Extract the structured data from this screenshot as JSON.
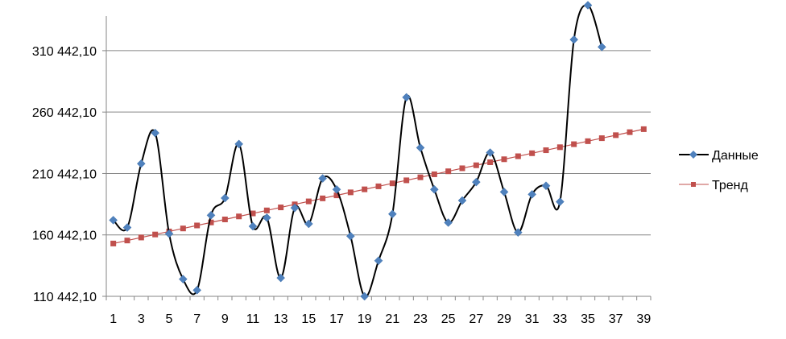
{
  "chart_data": {
    "type": "line",
    "title": "",
    "xlabel": "",
    "ylabel": "",
    "x_ticks": [
      "1",
      "3",
      "5",
      "7",
      "9",
      "11",
      "13",
      "15",
      "17",
      "19",
      "21",
      "23",
      "25",
      "27",
      "29",
      "31",
      "33",
      "35",
      "37",
      "39"
    ],
    "y_ticks": [
      "110 442,10",
      "160 442,10",
      "210 442,10",
      "260 442,10",
      "310 442,10"
    ],
    "xlim": [
      1,
      39
    ],
    "ylim": [
      110442.1,
      346442.1
    ],
    "grid": "horizontal",
    "legend_position": "right",
    "series": [
      {
        "name": "Данные",
        "color": "#000000",
        "marker": "diamond",
        "marker_color": "#4F81BD",
        "smooth": true,
        "x": [
          1,
          2,
          3,
          4,
          5,
          6,
          7,
          8,
          9,
          10,
          11,
          12,
          13,
          14,
          15,
          16,
          17,
          18,
          19,
          20,
          21,
          22,
          23,
          24,
          25,
          26,
          27,
          28,
          29,
          30,
          31,
          32,
          33,
          34,
          35,
          36
        ],
        "values": [
          172442,
          166442,
          218442,
          243442,
          161442,
          124442,
          115442,
          176442,
          190442,
          234442,
          167442,
          174442,
          125442,
          182442,
          169442,
          206442,
          197442,
          159442,
          110442,
          139442,
          177442,
          272442,
          231442,
          197442,
          170442,
          188442,
          203442,
          227442,
          195442,
          162442,
          193442,
          200442,
          187442,
          319442,
          347442,
          313442
        ]
      },
      {
        "name": "Тренд",
        "color": "#C0504D",
        "marker": "square",
        "marker_color": "#C0504D",
        "smooth": false,
        "x": [
          1,
          2,
          3,
          4,
          5,
          6,
          7,
          8,
          9,
          10,
          11,
          12,
          13,
          14,
          15,
          16,
          17,
          18,
          19,
          20,
          21,
          22,
          23,
          24,
          25,
          26,
          27,
          28,
          29,
          30,
          31,
          32,
          33,
          34,
          35,
          36,
          37,
          38,
          39
        ],
        "values": [
          153442,
          155892,
          158342,
          160792,
          163242,
          165692,
          168142,
          170592,
          173042,
          175492,
          177942,
          180392,
          182842,
          185292,
          187742,
          190192,
          192642,
          195092,
          197542,
          199992,
          202442,
          204892,
          207342,
          209792,
          212242,
          214692,
          217142,
          219592,
          222042,
          224492,
          226942,
          229392,
          231842,
          234292,
          236742,
          239192,
          241642,
          244092,
          246542
        ]
      }
    ]
  }
}
